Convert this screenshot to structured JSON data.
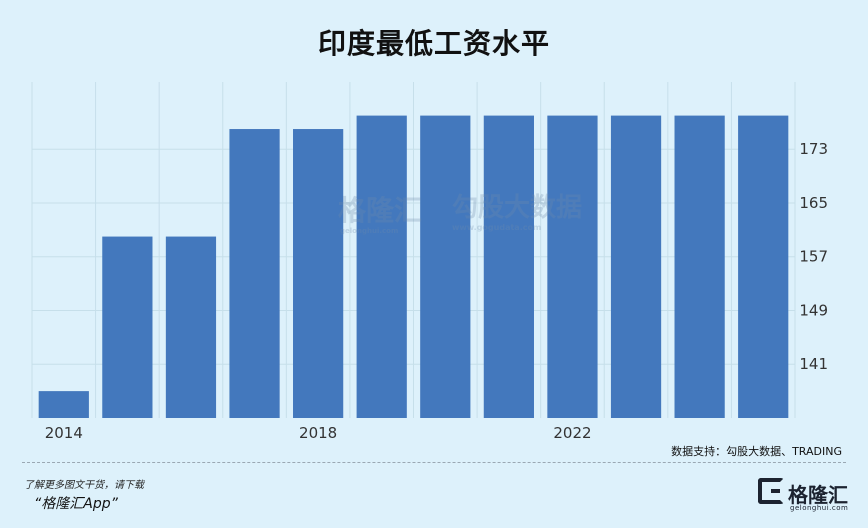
{
  "title": "印度最低工资水平",
  "source": "数据支持：勾股大数据、TRADING",
  "promo": {
    "line1": "了解更多图文干货，请下载",
    "line2": "“格隆汇App”"
  },
  "logo": {
    "name": "格隆汇",
    "url": "gelonghui.com",
    "mark_icon": "g-logo-icon"
  },
  "watermark": {
    "brand": "格隆汇",
    "brand_url": "gelonghui.com",
    "text": "勾股大数据",
    "url": "www.gogudata.com"
  },
  "colors": {
    "background": "#ddf1fb",
    "bar": "#4378bd",
    "grid": "#c6dfea",
    "axis_text": "#333333"
  },
  "chart_data": {
    "type": "bar",
    "title": "印度最低工资水平",
    "x": [
      2014,
      2015,
      2016,
      2017,
      2018,
      2019,
      2020,
      2021,
      2022,
      2023,
      2024,
      2025
    ],
    "values": [
      137,
      160,
      160,
      176,
      176,
      178,
      178,
      178,
      178,
      178,
      178,
      178
    ],
    "x_tick_labels": [
      "2014",
      "2018",
      "2022"
    ],
    "y_ticks": [
      141,
      149,
      157,
      165,
      173
    ],
    "ylim": [
      133,
      183
    ],
    "y_axis_side": "right",
    "grid": true,
    "legend": "none"
  }
}
